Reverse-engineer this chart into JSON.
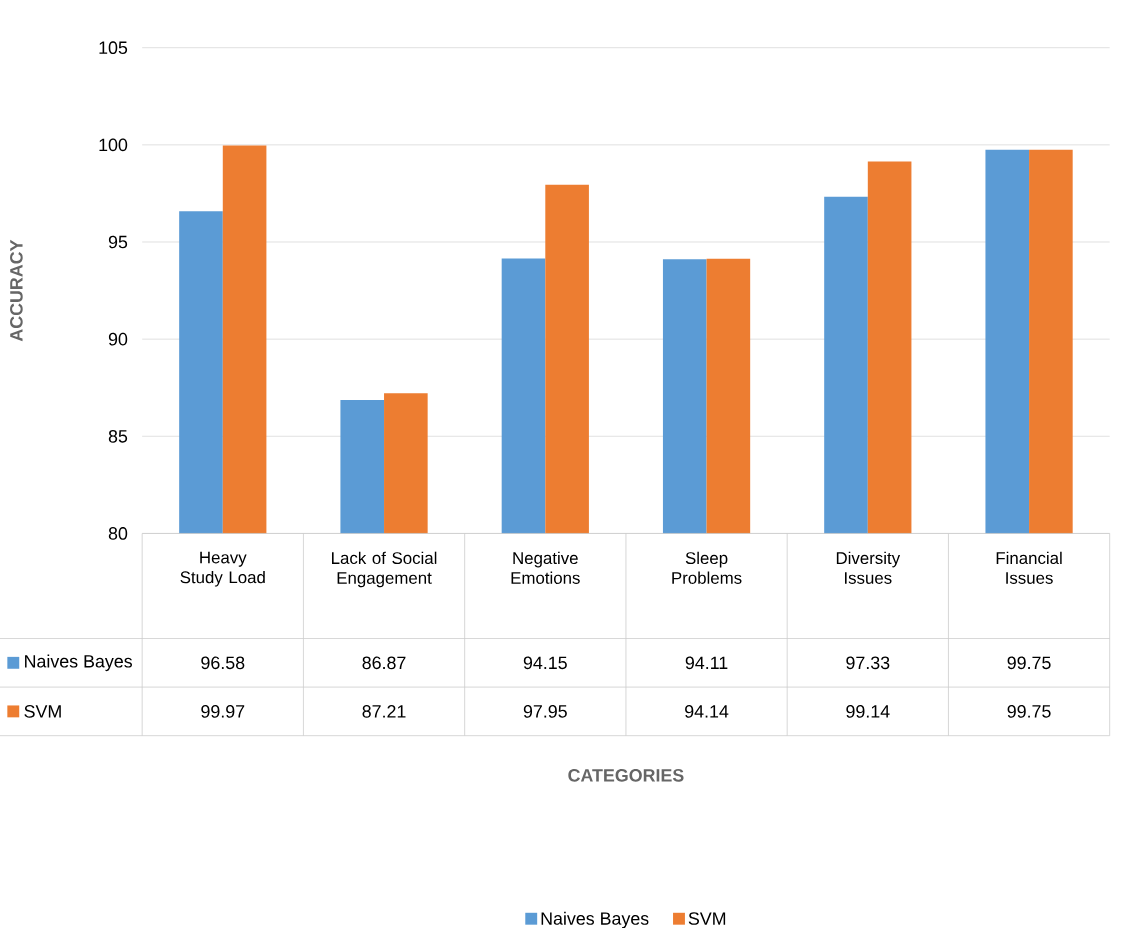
{
  "chart_data": {
    "type": "bar",
    "annotations": [
      "CATEGORIES"
    ],
    "ylabel": "ACCURACY",
    "categories": [
      "Heavy Study Load",
      "Lack of Social Engagement",
      "Negative Emotions",
      "Sleep Problems",
      "Diversity Issues",
      "Financial Issues"
    ],
    "series": [
      {
        "name": "Naives Bayes",
        "color": "#5b9bd5",
        "values": [
          96.58,
          86.87,
          94.15,
          94.11,
          97.33,
          99.75
        ]
      },
      {
        "name": "SVM",
        "color": "#ed7d31",
        "values": [
          99.97,
          87.21,
          97.95,
          94.14,
          99.14,
          99.75
        ]
      }
    ],
    "ylim": [
      80,
      105
    ],
    "yticks": [
      80,
      85,
      90,
      95,
      100,
      105
    ],
    "grid": "y",
    "legend": "bottom",
    "data_labels": true
  }
}
